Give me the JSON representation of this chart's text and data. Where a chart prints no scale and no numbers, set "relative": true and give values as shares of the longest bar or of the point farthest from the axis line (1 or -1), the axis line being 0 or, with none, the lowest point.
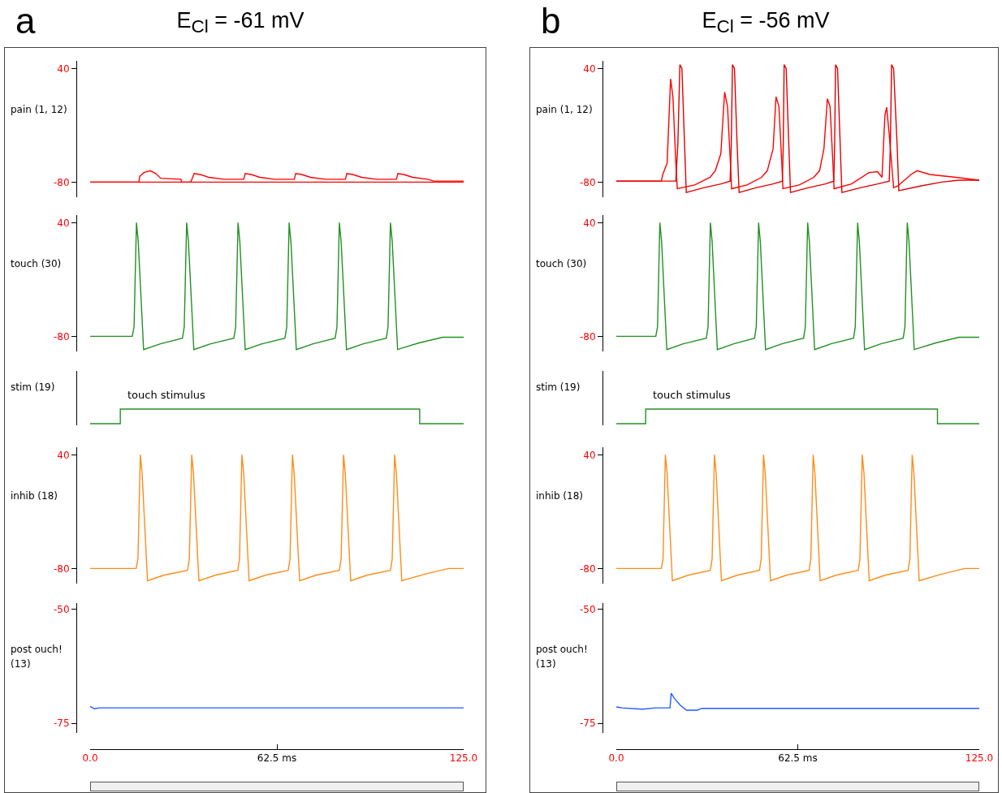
{
  "chart_data": [
    {
      "type": "line",
      "title": "E$_{Cl}$ = -61 mV",
      "annotations": [
        "a"
      ],
      "ylabel": "pain (1, 12)",
      "xlim": [
        0,
        125
      ],
      "ylim": [
        -96,
        48
      ],
      "yticks": [
        -80,
        40
      ],
      "tick_labels": "y",
      "series": [
        {
          "color": "#ff0000",
          "x": [
            0,
            125
          ],
          "values": [
            -80,
            -80
          ]
        },
        {
          "color": "#ff0000",
          "x": [
            0,
            16.3,
            16.6,
            18,
            20.1,
            22,
            23.6,
            30.4,
            30.6,
            33.7,
            34.8,
            36.8,
            39.8,
            44.8,
            51.4,
            51.9,
            53.9,
            56.9,
            61.9,
            68.3,
            68.8,
            70.8,
            73.8,
            78.8,
            85.4,
            85.9,
            87.9,
            90.9,
            95.9,
            102.5,
            103,
            105,
            108,
            113,
            115,
            125
          ],
          "values": [
            -80,
            -80,
            -74,
            -70,
            -68,
            -71,
            -76,
            -77,
            -80,
            -80,
            -71,
            -72,
            -75,
            -77,
            -77,
            -71,
            -72,
            -75,
            -77,
            -77,
            -71,
            -72,
            -75,
            -77,
            -77,
            -71,
            -72,
            -75,
            -77,
            -77,
            -71,
            -72,
            -75,
            -77,
            -79,
            -79
          ]
        }
      ]
    },
    {
      "type": "line",
      "ylabel": "touch (30)",
      "xlim": [
        0,
        125
      ],
      "ylim": [
        -96,
        48
      ],
      "yticks": [
        -80,
        40
      ],
      "tick_labels": "y",
      "series": [
        {
          "color": "#239023",
          "x": [
            0,
            14.1,
            14.7,
            15.5,
            16.1,
            17.9,
            23.5,
            30.9,
            31.5,
            32.3,
            32.9,
            34.7,
            40.3,
            48.1,
            48.7,
            49.5,
            50.1,
            51.9,
            57.5,
            65.2,
            65.8,
            66.6,
            67.2,
            69.0,
            74.6,
            82.0,
            82.6,
            83.4,
            84.0,
            85.8,
            91.4,
            99.1,
            99.7,
            100.5,
            101.1,
            102.9,
            110,
            118,
            125
          ],
          "values": [
            -80,
            -80,
            -70,
            40,
            20,
            -94,
            -88,
            -82,
            -70,
            40,
            20,
            -94,
            -88,
            -82,
            -70,
            40,
            20,
            -94,
            -88,
            -82,
            -70,
            40,
            20,
            -94,
            -88,
            -82,
            -70,
            40,
            20,
            -94,
            -88,
            -82,
            -70,
            40,
            20,
            -94,
            -87,
            -81,
            -81
          ]
        }
      ]
    },
    {
      "type": "line",
      "ylabel": "stim (19)",
      "relative": true,
      "annotations": [
        {
          "text": "touch stimulus",
          "x": 12,
          "y": 1
        }
      ],
      "xlim": [
        0,
        125
      ],
      "tick_labels": false,
      "series": [
        {
          "color": "#239023",
          "x": [
            0,
            10.1,
            10.1,
            110.3,
            110.3,
            125
          ],
          "values": [
            0,
            0,
            1,
            1,
            0,
            0
          ]
        }
      ]
    },
    {
      "type": "line",
      "ylabel": "inhib (18)",
      "xlim": [
        0,
        125
      ],
      "ylim": [
        -96,
        48
      ],
      "yticks": [
        -80,
        40
      ],
      "tick_labels": "y",
      "series": [
        {
          "color": "#ff8c1a",
          "x": [
            0,
            15.4,
            16.0,
            16.8,
            17.4,
            19.2,
            24.8,
            32.6,
            33.2,
            34.0,
            34.6,
            36.4,
            42.0,
            49.4,
            50.0,
            50.8,
            51.4,
            53.2,
            58.8,
            66.3,
            66.9,
            67.7,
            68.3,
            70.1,
            75.7,
            83.4,
            84.0,
            84.8,
            85.4,
            87.2,
            92.8,
            100.5,
            101.1,
            101.9,
            102.5,
            104.3,
            112,
            120,
            125
          ],
          "values": [
            -80,
            -80,
            -70,
            40,
            20,
            -93,
            -87,
            -82,
            -70,
            40,
            20,
            -93,
            -87,
            -82,
            -70,
            40,
            20,
            -93,
            -87,
            -82,
            -70,
            40,
            20,
            -93,
            -87,
            -82,
            -70,
            40,
            20,
            -93,
            -87,
            -82,
            -70,
            40,
            20,
            -93,
            -86,
            -80,
            -80
          ]
        }
      ]
    },
    {
      "type": "line",
      "ylabel": "post ouch! (13)",
      "xlim": [
        0,
        125
      ],
      "ylim": [
        -77.1,
        -48.6
      ],
      "yticks": [
        -75,
        -50
      ],
      "xticks": [
        {
          "value": 0,
          "label": "0.0"
        },
        {
          "value": 62.5,
          "label": "62.5 ms"
        },
        {
          "value": 125,
          "label": "125.0"
        }
      ],
      "series": [
        {
          "color": "#1f5bff",
          "x": [
            0,
            1.5,
            3,
            125
          ],
          "values": [
            -71.3,
            -71.8,
            -71.6,
            -71.6
          ]
        }
      ]
    },
    {
      "type": "line",
      "title": "E$_{Cl}$ = -56 mV",
      "annotations": [
        "b"
      ],
      "ylabel": "pain (1, 12)",
      "xlim": [
        0,
        125
      ],
      "ylim": [
        -96,
        48
      ],
      "yticks": [
        -80,
        40
      ],
      "tick_labels": "y",
      "series": [
        {
          "color": "#ff0000",
          "x": [
            0,
            15.5,
            16,
            17.5,
            18.7,
            19.5,
            20.5,
            21,
            27,
            32.3,
            34.1,
            36,
            37.3,
            38.3,
            39.3,
            39.7,
            45,
            50,
            52,
            54,
            55,
            56,
            57,
            57.4,
            63,
            68,
            70,
            71.5,
            72.7,
            73.6,
            74.6,
            75,
            81,
            87,
            90,
            91.5,
            92.5,
            93.1,
            94,
            95.5,
            97,
            101.5,
            103.6,
            108,
            117,
            125
          ],
          "values": [
            -79,
            -79,
            -72,
            -60,
            29,
            10,
            -60,
            -87,
            -83,
            -75,
            -68,
            -50,
            15,
            0,
            -60,
            -87,
            -83,
            -75,
            -68,
            -45,
            10,
            0,
            -60,
            -87,
            -83,
            -75,
            -68,
            -45,
            8,
            0,
            -60,
            -87,
            -82,
            -70,
            -69,
            -75,
            -10,
            -1,
            -30,
            -86,
            -84,
            -72,
            -68,
            -72,
            -75,
            -78
          ]
        },
        {
          "color": "#e00000",
          "x": [
            0,
            20.5,
            21.2,
            21.9,
            22.6,
            23.5,
            24.1,
            30,
            36,
            39.2,
            39.6,
            40,
            40.7,
            41.6,
            42.3,
            48,
            54,
            57.2,
            57.5,
            57.8,
            58.5,
            59.4,
            60,
            66,
            72,
            74.9,
            75.2,
            75.5,
            76.2,
            77.1,
            77.7,
            84,
            90,
            94,
            94.4,
            94.8,
            95.5,
            96.7,
            97.3,
            105,
            112,
            118,
            125
          ],
          "values": [
            -79,
            -79,
            -40,
            44,
            40,
            -40,
            -91,
            -86,
            -82,
            -79,
            -40,
            44,
            40,
            -40,
            -91,
            -86,
            -82,
            -79,
            -40,
            44,
            40,
            -40,
            -91,
            -86,
            -82,
            -79,
            -40,
            44,
            40,
            -40,
            -91,
            -86,
            -82,
            -79,
            -40,
            44,
            40,
            -40,
            -89,
            -84,
            -80,
            -78,
            -78
          ]
        }
      ]
    },
    {
      "type": "line",
      "ylabel": "touch (30)",
      "xlim": [
        0,
        125
      ],
      "ylim": [
        -96,
        48
      ],
      "yticks": [
        -80,
        40
      ],
      "tick_labels": "y",
      "series": [
        {
          "color": "#239023",
          "x": [
            0,
            13.6,
            14.2,
            15.0,
            15.6,
            17.4,
            23.0,
            31.0,
            31.6,
            32.4,
            33.0,
            34.8,
            40.4,
            47.6,
            48.2,
            49.0,
            49.6,
            51.4,
            57.0,
            64.5,
            65.1,
            65.9,
            66.5,
            68.3,
            73.9,
            81.7,
            82.3,
            83.1,
            83.7,
            85.5,
            91.1,
            98.8,
            99.4,
            100.2,
            100.8,
            102.6,
            110,
            118,
            125
          ],
          "values": [
            -80,
            -80,
            -70,
            40,
            20,
            -94,
            -88,
            -82,
            -70,
            40,
            20,
            -94,
            -88,
            -82,
            -70,
            40,
            20,
            -94,
            -88,
            -82,
            -70,
            40,
            20,
            -94,
            -88,
            -82,
            -70,
            40,
            20,
            -94,
            -88,
            -82,
            -70,
            40,
            20,
            -94,
            -87,
            -81,
            -81
          ]
        }
      ]
    },
    {
      "type": "line",
      "ylabel": "stim (19)",
      "relative": true,
      "annotations": [
        {
          "text": "touch stimulus",
          "x": 12,
          "y": 1
        }
      ],
      "xlim": [
        0,
        125
      ],
      "tick_labels": false,
      "series": [
        {
          "color": "#239023",
          "x": [
            0,
            10.1,
            10.1,
            110.6,
            110.6,
            125
          ],
          "values": [
            0,
            0,
            1,
            1,
            0,
            0
          ]
        }
      ]
    },
    {
      "type": "line",
      "ylabel": "inhib (18)",
      "xlim": [
        0,
        125
      ],
      "ylim": [
        -96,
        48
      ],
      "yticks": [
        -80,
        40
      ],
      "tick_labels": "y",
      "series": [
        {
          "color": "#ff8c1a",
          "x": [
            0,
            15.5,
            16.1,
            16.9,
            17.5,
            19.3,
            24.9,
            32.4,
            33.0,
            33.8,
            34.4,
            36.2,
            41.8,
            49.3,
            49.9,
            50.7,
            51.3,
            53.1,
            58.7,
            66.4,
            67.0,
            67.8,
            68.4,
            70.2,
            75.8,
            83.3,
            83.9,
            84.7,
            85.3,
            87.1,
            92.7,
            100.5,
            101.1,
            101.9,
            102.5,
            104.3,
            112,
            120,
            125
          ],
          "values": [
            -80,
            -80,
            -70,
            40,
            20,
            -93,
            -87,
            -82,
            -70,
            40,
            20,
            -93,
            -87,
            -82,
            -70,
            40,
            20,
            -93,
            -87,
            -82,
            -70,
            40,
            20,
            -93,
            -87,
            -82,
            -70,
            40,
            20,
            -93,
            -87,
            -82,
            -70,
            40,
            20,
            -93,
            -86,
            -80,
            -80
          ]
        }
      ]
    },
    {
      "type": "line",
      "ylabel": "post ouch! (13)",
      "xlim": [
        0,
        125
      ],
      "ylim": [
        -77.1,
        -48.6
      ],
      "yticks": [
        -75,
        -50
      ],
      "xticks": [
        {
          "value": 0,
          "label": "0.0"
        },
        {
          "value": 62.5,
          "label": "62.5 ms"
        },
        {
          "value": 125,
          "label": "125.0"
        }
      ],
      "series": [
        {
          "color": "#1f5bff",
          "x": [
            0,
            2,
            9,
            13.5,
            18.5,
            18.9,
            20,
            22,
            24.2,
            27.8,
            29.5,
            125
          ],
          "values": [
            -71.4,
            -71.6,
            -71.9,
            -71.6,
            -71.6,
            -68.4,
            -69.5,
            -71,
            -72.1,
            -72.1,
            -71.7,
            -71.7
          ]
        }
      ]
    }
  ]
}
